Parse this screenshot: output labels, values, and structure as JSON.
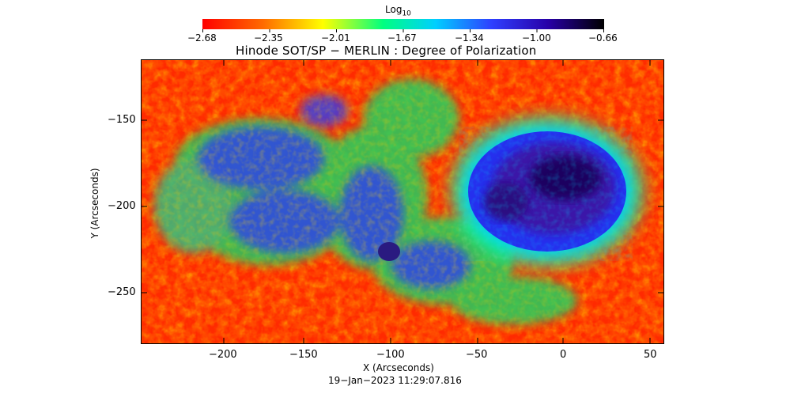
{
  "colorbar": {
    "title": "Log",
    "title_sub": "10",
    "tick_labels": [
      "−2.68",
      "−2.35",
      "−2.01",
      "−1.67",
      "−1.34",
      "−1.00",
      "−0.66"
    ],
    "stops": [
      "#ff0000",
      "#ff7f00",
      "#ffff00",
      "#00ff7f",
      "#00cfff",
      "#2f3fff",
      "#1c00b0",
      "#000000"
    ]
  },
  "plot": {
    "title": "Hinode SOT/SP − MERLIN : Degree of Polarization",
    "xlabel": "X (Arcseconds)",
    "ylabel": "Y (Arcseconds)",
    "x_ticks": [
      "−200",
      "−150",
      "−100",
      "−50",
      "0",
      "50"
    ],
    "y_ticks": [
      "−150",
      "−200",
      "−250"
    ]
  },
  "footer": {
    "timestamp": "19−Jan−2023 11:29:07.816"
  }
}
